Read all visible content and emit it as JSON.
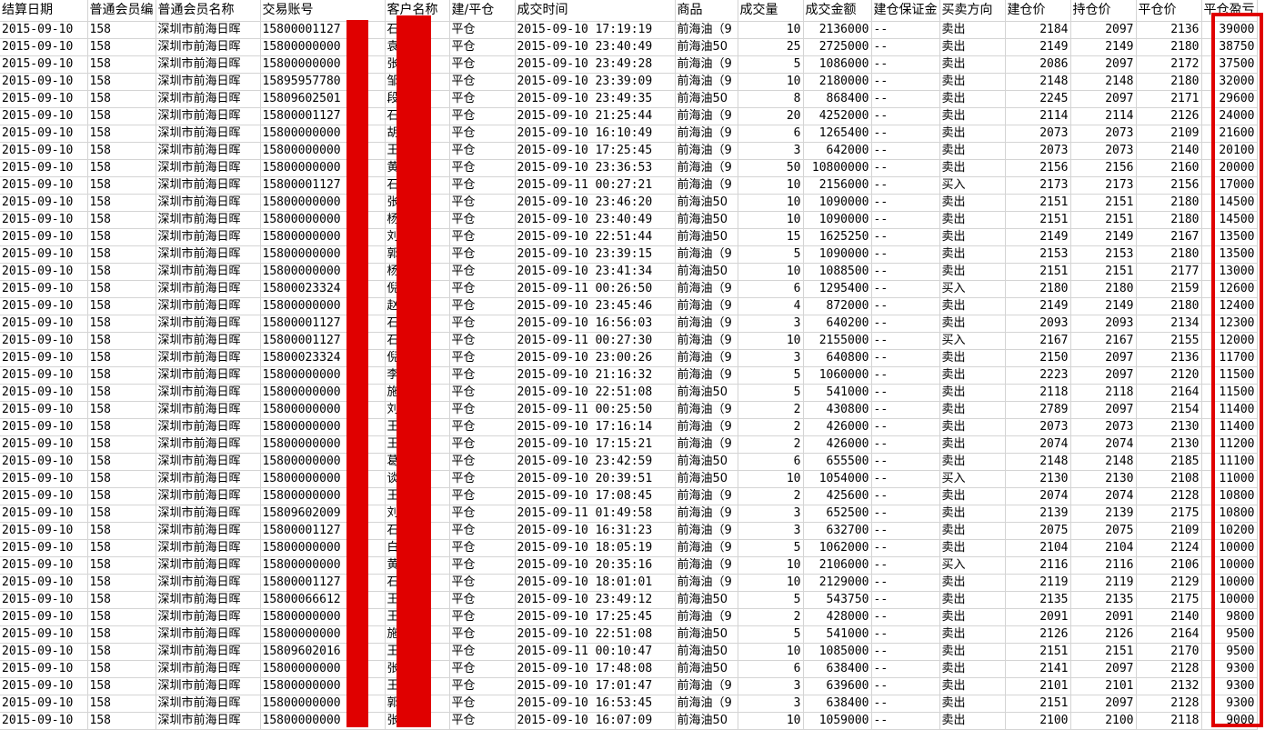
{
  "sheet": {
    "headers": [
      "结算日期",
      "普通会员编",
      "普通会员名称",
      "交易账号",
      "客户名称",
      "建/平仓",
      "成交时间",
      "商品",
      "成交量",
      "成交金额",
      "建仓保证金",
      "买卖方向",
      "建仓价",
      "持仓价",
      "平仓价",
      "平仓盈亏"
    ],
    "rows": [
      [
        "2015-09-10",
        "158",
        "深圳市前海日晖",
        "15800001127",
        "石",
        "平仓",
        "2015-09-10 17:19:19",
        "前海油（9",
        "10",
        "2136000",
        "--",
        "卖出",
        "2184",
        "2097",
        "2136",
        "39000"
      ],
      [
        "2015-09-10",
        "158",
        "深圳市前海日晖",
        "15800000000",
        "袁",
        "平仓",
        "2015-09-10 23:40:49",
        "前海油50",
        "25",
        "2725000",
        "--",
        "卖出",
        "2149",
        "2149",
        "2180",
        "38750"
      ],
      [
        "2015-09-10",
        "158",
        "深圳市前海日晖",
        "15800000000",
        "张",
        "平仓",
        "2015-09-10 23:49:28",
        "前海油（9",
        "5",
        "1086000",
        "--",
        "卖出",
        "2086",
        "2097",
        "2172",
        "37500"
      ],
      [
        "2015-09-10",
        "158",
        "深圳市前海日晖",
        "15895957780",
        "邹",
        "平仓",
        "2015-09-10 23:39:09",
        "前海油（9",
        "10",
        "2180000",
        "--",
        "卖出",
        "2148",
        "2148",
        "2180",
        "32000"
      ],
      [
        "2015-09-10",
        "158",
        "深圳市前海日晖",
        "15809602501",
        "段",
        "平仓",
        "2015-09-10 23:49:35",
        "前海油50",
        "8",
        "868400",
        "--",
        "卖出",
        "2245",
        "2097",
        "2171",
        "29600"
      ],
      [
        "2015-09-10",
        "158",
        "深圳市前海日晖",
        "15800001127",
        "石",
        "平仓",
        "2015-09-10 21:25:44",
        "前海油（9",
        "20",
        "4252000",
        "--",
        "卖出",
        "2114",
        "2114",
        "2126",
        "24000"
      ],
      [
        "2015-09-10",
        "158",
        "深圳市前海日晖",
        "15800000000",
        "胡",
        "平仓",
        "2015-09-10 16:10:49",
        "前海油（9",
        "6",
        "1265400",
        "--",
        "卖出",
        "2073",
        "2073",
        "2109",
        "21600"
      ],
      [
        "2015-09-10",
        "158",
        "深圳市前海日晖",
        "15800000000",
        "王",
        "平仓",
        "2015-09-10 17:25:45",
        "前海油（9",
        "3",
        "642000",
        "--",
        "卖出",
        "2073",
        "2073",
        "2140",
        "20100"
      ],
      [
        "2015-09-10",
        "158",
        "深圳市前海日晖",
        "15800000000",
        "黄",
        "平仓",
        "2015-09-10 23:36:53",
        "前海油（9",
        "50",
        "10800000",
        "--",
        "卖出",
        "2156",
        "2156",
        "2160",
        "20000"
      ],
      [
        "2015-09-10",
        "158",
        "深圳市前海日晖",
        "15800001127",
        "石",
        "平仓",
        "2015-09-11 00:27:21",
        "前海油（9",
        "10",
        "2156000",
        "--",
        "买入",
        "2173",
        "2173",
        "2156",
        "17000"
      ],
      [
        "2015-09-10",
        "158",
        "深圳市前海日晖",
        "15800000000",
        "张",
        "平仓",
        "2015-09-10 23:46:20",
        "前海油50",
        "10",
        "1090000",
        "--",
        "卖出",
        "2151",
        "2151",
        "2180",
        "14500"
      ],
      [
        "2015-09-10",
        "158",
        "深圳市前海日晖",
        "15800000000",
        "杨",
        "平仓",
        "2015-09-10 23:40:49",
        "前海油50",
        "10",
        "1090000",
        "--",
        "卖出",
        "2151",
        "2151",
        "2180",
        "14500"
      ],
      [
        "2015-09-10",
        "158",
        "深圳市前海日晖",
        "15800000000",
        "刘",
        "平仓",
        "2015-09-10 22:51:44",
        "前海油50",
        "15",
        "1625250",
        "--",
        "卖出",
        "2149",
        "2149",
        "2167",
        "13500"
      ],
      [
        "2015-09-10",
        "158",
        "深圳市前海日晖",
        "15800000000",
        "郭",
        "平仓",
        "2015-09-10 23:39:15",
        "前海油（9",
        "5",
        "1090000",
        "--",
        "卖出",
        "2153",
        "2153",
        "2180",
        "13500"
      ],
      [
        "2015-09-10",
        "158",
        "深圳市前海日晖",
        "15800000000",
        "杨",
        "平仓",
        "2015-09-10 23:41:34",
        "前海油50",
        "10",
        "1088500",
        "--",
        "卖出",
        "2151",
        "2151",
        "2177",
        "13000"
      ],
      [
        "2015-09-10",
        "158",
        "深圳市前海日晖",
        "15800023324",
        "倪",
        "平仓",
        "2015-09-11 00:26:50",
        "前海油（9",
        "6",
        "1295400",
        "--",
        "买入",
        "2180",
        "2180",
        "2159",
        "12600"
      ],
      [
        "2015-09-10",
        "158",
        "深圳市前海日晖",
        "15800000000",
        "赵",
        "平仓",
        "2015-09-10 23:45:46",
        "前海油（9",
        "4",
        "872000",
        "--",
        "卖出",
        "2149",
        "2149",
        "2180",
        "12400"
      ],
      [
        "2015-09-10",
        "158",
        "深圳市前海日晖",
        "15800001127",
        "石",
        "平仓",
        "2015-09-10 16:56:03",
        "前海油（9",
        "3",
        "640200",
        "--",
        "卖出",
        "2093",
        "2093",
        "2134",
        "12300"
      ],
      [
        "2015-09-10",
        "158",
        "深圳市前海日晖",
        "15800001127",
        "石",
        "平仓",
        "2015-09-11 00:27:30",
        "前海油（9",
        "10",
        "2155000",
        "--",
        "买入",
        "2167",
        "2167",
        "2155",
        "12000"
      ],
      [
        "2015-09-10",
        "158",
        "深圳市前海日晖",
        "15800023324",
        "倪",
        "平仓",
        "2015-09-10 23:00:26",
        "前海油（9",
        "3",
        "640800",
        "--",
        "卖出",
        "2150",
        "2097",
        "2136",
        "11700"
      ],
      [
        "2015-09-10",
        "158",
        "深圳市前海日晖",
        "15800000000",
        "李",
        "平仓",
        "2015-09-10 21:16:32",
        "前海油（9",
        "5",
        "1060000",
        "--",
        "卖出",
        "2223",
        "2097",
        "2120",
        "11500"
      ],
      [
        "2015-09-10",
        "158",
        "深圳市前海日晖",
        "15800000000",
        "施",
        "平仓",
        "2015-09-10 22:51:08",
        "前海油50",
        "5",
        "541000",
        "--",
        "卖出",
        "2118",
        "2118",
        "2164",
        "11500"
      ],
      [
        "2015-09-10",
        "158",
        "深圳市前海日晖",
        "15800000000",
        "刘",
        "平仓",
        "2015-09-11 00:25:50",
        "前海油（9",
        "2",
        "430800",
        "--",
        "卖出",
        "2789",
        "2097",
        "2154",
        "11400"
      ],
      [
        "2015-09-10",
        "158",
        "深圳市前海日晖",
        "15800000000",
        "王",
        "平仓",
        "2015-09-10 17:16:14",
        "前海油（9",
        "2",
        "426000",
        "--",
        "卖出",
        "2073",
        "2073",
        "2130",
        "11400"
      ],
      [
        "2015-09-10",
        "158",
        "深圳市前海日晖",
        "15800000000",
        "王",
        "平仓",
        "2015-09-10 17:15:21",
        "前海油（9",
        "2",
        "426000",
        "--",
        "卖出",
        "2074",
        "2074",
        "2130",
        "11200"
      ],
      [
        "2015-09-10",
        "158",
        "深圳市前海日晖",
        "15800000000",
        "葛",
        "平仓",
        "2015-09-10 23:42:59",
        "前海油50",
        "6",
        "655500",
        "--",
        "卖出",
        "2148",
        "2148",
        "2185",
        "11100"
      ],
      [
        "2015-09-10",
        "158",
        "深圳市前海日晖",
        "15800000000",
        "谈",
        "平仓",
        "2015-09-10 20:39:51",
        "前海油50",
        "10",
        "1054000",
        "--",
        "买入",
        "2130",
        "2130",
        "2108",
        "11000"
      ],
      [
        "2015-09-10",
        "158",
        "深圳市前海日晖",
        "15800000000",
        "王",
        "平仓",
        "2015-09-10 17:08:45",
        "前海油（9",
        "2",
        "425600",
        "--",
        "卖出",
        "2074",
        "2074",
        "2128",
        "10800"
      ],
      [
        "2015-09-10",
        "158",
        "深圳市前海日晖",
        "15809602009",
        "刘",
        "平仓",
        "2015-09-11 01:49:58",
        "前海油（9",
        "3",
        "652500",
        "--",
        "卖出",
        "2139",
        "2139",
        "2175",
        "10800"
      ],
      [
        "2015-09-10",
        "158",
        "深圳市前海日晖",
        "15800001127",
        "石",
        "平仓",
        "2015-09-10 16:31:23",
        "前海油（9",
        "3",
        "632700",
        "--",
        "卖出",
        "2075",
        "2075",
        "2109",
        "10200"
      ],
      [
        "2015-09-10",
        "158",
        "深圳市前海日晖",
        "15800000000",
        "白",
        "平仓",
        "2015-09-10 18:05:19",
        "前海油（9",
        "5",
        "1062000",
        "--",
        "卖出",
        "2104",
        "2104",
        "2124",
        "10000"
      ],
      [
        "2015-09-10",
        "158",
        "深圳市前海日晖",
        "15800000000",
        "黄",
        "平仓",
        "2015-09-10 20:35:16",
        "前海油（9",
        "10",
        "2106000",
        "--",
        "买入",
        "2116",
        "2116",
        "2106",
        "10000"
      ],
      [
        "2015-09-10",
        "158",
        "深圳市前海日晖",
        "15800001127",
        "石",
        "平仓",
        "2015-09-10 18:01:01",
        "前海油（9",
        "10",
        "2129000",
        "--",
        "卖出",
        "2119",
        "2119",
        "2129",
        "10000"
      ],
      [
        "2015-09-10",
        "158",
        "深圳市前海日晖",
        "15800066612",
        "王",
        "平仓",
        "2015-09-10 23:49:12",
        "前海油50",
        "5",
        "543750",
        "--",
        "卖出",
        "2135",
        "2135",
        "2175",
        "10000"
      ],
      [
        "2015-09-10",
        "158",
        "深圳市前海日晖",
        "15800000000",
        "王",
        "平仓",
        "2015-09-10 17:25:45",
        "前海油（9",
        "2",
        "428000",
        "--",
        "卖出",
        "2091",
        "2091",
        "2140",
        "9800"
      ],
      [
        "2015-09-10",
        "158",
        "深圳市前海日晖",
        "15800000000",
        "施",
        "平仓",
        "2015-09-10 22:51:08",
        "前海油50",
        "5",
        "541000",
        "--",
        "卖出",
        "2126",
        "2126",
        "2164",
        "9500"
      ],
      [
        "2015-09-10",
        "158",
        "深圳市前海日晖",
        "15809602016",
        "王",
        "平仓",
        "2015-09-11 00:10:47",
        "前海油50",
        "10",
        "1085000",
        "--",
        "卖出",
        "2151",
        "2151",
        "2170",
        "9500"
      ],
      [
        "2015-09-10",
        "158",
        "深圳市前海日晖",
        "15800000000",
        "张",
        "平仓",
        "2015-09-10 17:48:08",
        "前海油50",
        "6",
        "638400",
        "--",
        "卖出",
        "2141",
        "2097",
        "2128",
        "9300"
      ],
      [
        "2015-09-10",
        "158",
        "深圳市前海日晖",
        "15800000000",
        "王",
        "平仓",
        "2015-09-10 17:01:47",
        "前海油（9",
        "3",
        "639600",
        "--",
        "卖出",
        "2101",
        "2101",
        "2132",
        "9300"
      ],
      [
        "2015-09-10",
        "158",
        "深圳市前海日晖",
        "15800000000",
        "郭",
        "平仓",
        "2015-09-10 16:53:45",
        "前海油（9",
        "3",
        "638400",
        "--",
        "卖出",
        "2151",
        "2097",
        "2128",
        "9300"
      ],
      [
        "2015-09-10",
        "158",
        "深圳市前海日晖",
        "15800000000",
        "张",
        "平仓",
        "2015-09-10 16:07:09",
        "前海油50",
        "10",
        "1059000",
        "--",
        "卖出",
        "2100",
        "2100",
        "2118",
        "9000"
      ]
    ]
  },
  "colors": {
    "redaction": "#e00000",
    "gridline": "#d4d4d4"
  }
}
